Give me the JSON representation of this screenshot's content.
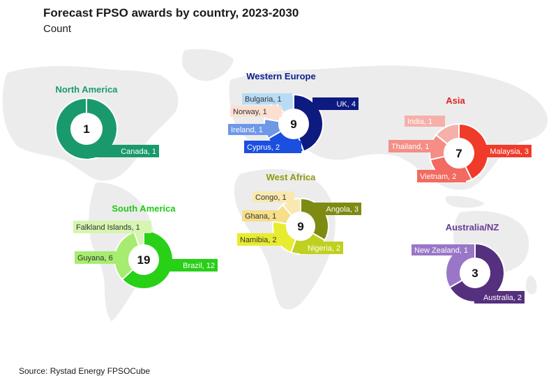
{
  "title": "Forecast FPSO awards by country, 2023-2030",
  "subtitle": "Count",
  "source": "Source: Rystad Energy FPSOCube",
  "chart_data": [
    {
      "type": "pie",
      "region": "North America",
      "total": "1",
      "color": "#1a9a6c",
      "slices": [
        {
          "label": "Canada, 1",
          "value": 1,
          "color": "#1a9a6c"
        }
      ]
    },
    {
      "type": "pie",
      "region": "Western Europe",
      "total": "9",
      "color": "#0a1f8f",
      "slices": [
        {
          "label": "UK, 4",
          "value": 4,
          "color": "#0d1a80"
        },
        {
          "label": "Cyprus, 2",
          "value": 2,
          "color": "#1a4fe0"
        },
        {
          "label": "Ireland, 1",
          "value": 1,
          "color": "#6f98e8"
        },
        {
          "label": "Norway, 1",
          "value": 1,
          "color": "#fbe0d2"
        },
        {
          "label": "Bulgaria, 1",
          "value": 1,
          "color": "#b8dcf5"
        }
      ]
    },
    {
      "type": "pie",
      "region": "Asia",
      "total": "7",
      "color": "#e02020",
      "slices": [
        {
          "label": "Malaysia, 3",
          "value": 3,
          "color": "#f03a2a"
        },
        {
          "label": "Vietnam, 2",
          "value": 2,
          "color": "#f26a60"
        },
        {
          "label": "Thailand, 1",
          "value": 1,
          "color": "#f48e86"
        },
        {
          "label": "India, 1",
          "value": 1,
          "color": "#f6b0aa"
        }
      ]
    },
    {
      "type": "pie",
      "region": "West Africa",
      "total": "9",
      "color": "#8f9a10",
      "slices": [
        {
          "label": "Angola, 3",
          "value": 3,
          "color": "#7e8a12"
        },
        {
          "label": "Nigeria, 2",
          "value": 2,
          "color": "#c0d020"
        },
        {
          "label": "Namibia, 2",
          "value": 2,
          "color": "#e8ec30"
        },
        {
          "label": "Ghana, 1",
          "value": 1,
          "color": "#f6de8a"
        },
        {
          "label": "Congo, 1",
          "value": 1,
          "color": "#f9e9b0"
        }
      ]
    },
    {
      "type": "pie",
      "region": "South America",
      "total": "19",
      "color": "#22c818",
      "slices": [
        {
          "label": "Brazil, 12",
          "value": 12,
          "color": "#28d018"
        },
        {
          "label": "Guyana, 6",
          "value": 6,
          "color": "#a6ec70"
        },
        {
          "label": "Falkland Islands, 1",
          "value": 1,
          "color": "#d6f5b0"
        }
      ]
    },
    {
      "type": "pie",
      "region": "Australia/NZ",
      "total": "3",
      "color": "#6a3a96",
      "slices": [
        {
          "label": "Australia, 2",
          "value": 2,
          "color": "#55307e"
        },
        {
          "label": "New Zealand, 1",
          "value": 1,
          "color": "#9a76c8"
        }
      ]
    }
  ]
}
